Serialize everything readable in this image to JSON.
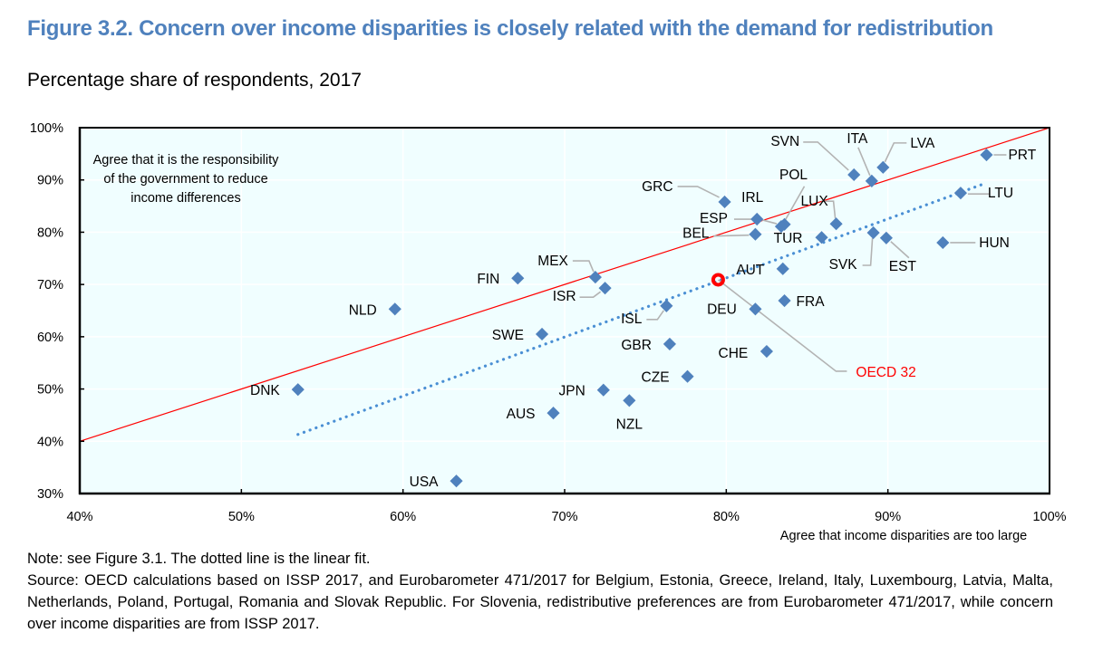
{
  "figure": {
    "title": "Figure 3.2. Concern over income disparities is closely related with the demand for redistribution",
    "subtitle": "Percentage share of respondents, 2017"
  },
  "notes": {
    "note": "Note: see Figure 3.1. The dotted line is the linear fit.",
    "source": "Source: OECD calculations based on ISSP 2017, and Eurobarometer 471/2017 for Belgium, Estonia, Greece, Ireland, Italy, Luxembourg, Latvia, Malta, Netherlands, Poland, Portugal, Romania and Slovak Republic. For Slovenia, redistributive preferences are from Eurobarometer 471/2017, while concern over income disparities are from ISSP 2017."
  },
  "colors": {
    "title": "#4f81bd",
    "marker": "#4f81bd",
    "fit_line": "#4a8fd4",
    "diagonal": "#ff0000",
    "oecd": "#ff0000",
    "plot_bg": "#f0feff",
    "leader": "#b3b3b3"
  },
  "chart_data": {
    "type": "scatter",
    "title": "Concern over income disparities is closely related with the demand for redistribution",
    "subtitle": "Percentage share of respondents, 2017",
    "xlabel": "Agree that income disparities are too large",
    "ylabel": "Agree that it is the responsibility of the government to reduce income differences",
    "ylabel_lines": [
      "Agree that it is the responsibility",
      "of the government to reduce",
      "income differences"
    ],
    "xlim": [
      40,
      100
    ],
    "ylim": [
      30,
      100
    ],
    "x_ticks": [
      40,
      50,
      60,
      70,
      80,
      90,
      100
    ],
    "x_tick_labels": [
      "40%",
      "50%",
      "60%",
      "70%",
      "80%",
      "90%",
      "100%"
    ],
    "y_ticks": [
      30,
      40,
      50,
      60,
      70,
      80,
      90,
      100
    ],
    "y_tick_labels": [
      "30%",
      "40%",
      "50%",
      "60%",
      "70%",
      "80%",
      "90%",
      "100%"
    ],
    "grid": true,
    "legend": "none",
    "series": [
      {
        "name": "Countries",
        "marker": "diamond",
        "points": [
          {
            "label": "PRT",
            "x": 96.1,
            "y": 94.8
          },
          {
            "label": "LTU",
            "x": 94.5,
            "y": 87.5
          },
          {
            "label": "HUN",
            "x": 93.4,
            "y": 78.0
          },
          {
            "label": "LVA",
            "x": 89.7,
            "y": 92.4
          },
          {
            "label": "ITA",
            "x": 89.0,
            "y": 89.8
          },
          {
            "label": "SVN",
            "x": 87.9,
            "y": 91.0
          },
          {
            "label": "EST",
            "x": 89.9,
            "y": 78.9
          },
          {
            "label": "SVK",
            "x": 89.1,
            "y": 79.9
          },
          {
            "label": "LUX",
            "x": 86.8,
            "y": 81.6
          },
          {
            "label": "TUR",
            "x": 85.9,
            "y": 79.0
          },
          {
            "label": "POL",
            "x": 83.6,
            "y": 81.5
          },
          {
            "label": "ESP",
            "x": 83.4,
            "y": 81.1
          },
          {
            "label": "IRL",
            "x": 81.9,
            "y": 82.5
          },
          {
            "label": "BEL",
            "x": 81.8,
            "y": 79.6
          },
          {
            "label": "GRC",
            "x": 79.9,
            "y": 85.8
          },
          {
            "label": "AUT",
            "x": 83.5,
            "y": 73.0
          },
          {
            "label": "FRA",
            "x": 83.6,
            "y": 66.9
          },
          {
            "label": "DEU",
            "x": 81.8,
            "y": 65.3
          },
          {
            "label": "CHE",
            "x": 82.5,
            "y": 57.2
          },
          {
            "label": "MEX",
            "x": 71.9,
            "y": 71.4
          },
          {
            "label": "ISR",
            "x": 72.5,
            "y": 69.3
          },
          {
            "label": "ISL",
            "x": 76.3,
            "y": 65.9
          },
          {
            "label": "GBR",
            "x": 76.5,
            "y": 58.6
          },
          {
            "label": "CZE",
            "x": 77.6,
            "y": 52.4
          },
          {
            "label": "FIN",
            "x": 67.1,
            "y": 71.2
          },
          {
            "label": "SWE",
            "x": 68.6,
            "y": 60.5
          },
          {
            "label": "NLD",
            "x": 59.5,
            "y": 65.3
          },
          {
            "label": "DNK",
            "x": 53.5,
            "y": 49.9
          },
          {
            "label": "JPN",
            "x": 72.4,
            "y": 49.8
          },
          {
            "label": "NZL",
            "x": 74.0,
            "y": 47.8
          },
          {
            "label": "AUS",
            "x": 69.3,
            "y": 45.4
          },
          {
            "label": "USA",
            "x": 63.3,
            "y": 32.4
          }
        ]
      },
      {
        "name": "OECD 32",
        "marker": "circle",
        "points": [
          {
            "label": "OECD 32",
            "x": 79.5,
            "y": 70.9
          }
        ]
      }
    ],
    "lines": [
      {
        "name": "45-degree line",
        "style": "solid",
        "x": [
          40,
          100
        ],
        "y": [
          40,
          100
        ]
      },
      {
        "name": "Linear fit",
        "style": "dotted",
        "x": [
          53.5,
          95.8
        ],
        "y": [
          41.3,
          89.1
        ]
      }
    ]
  }
}
